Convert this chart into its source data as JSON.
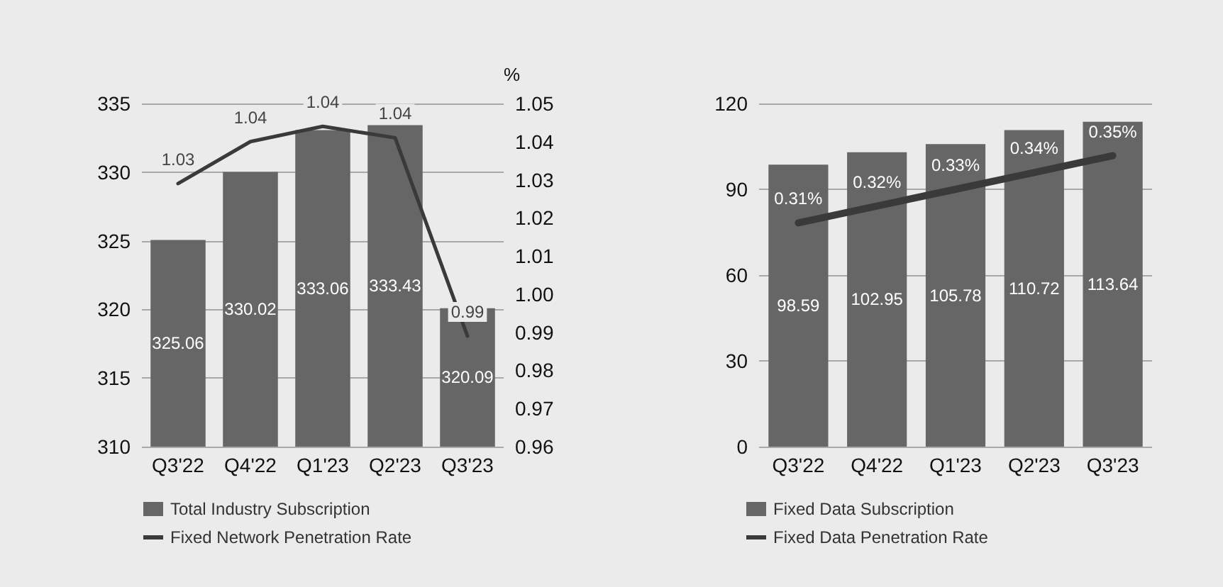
{
  "chart_data": [
    {
      "type": "bar",
      "categories": [
        "Q3'22",
        "Q4'22",
        "Q1'23",
        "Q2'23",
        "Q3'23"
      ],
      "y2label": "%",
      "legend": "bottom left",
      "grid": "y",
      "series": [
        {
          "name": "Total Industry Subscription",
          "color": "#666666",
          "values": [
            325.06,
            330.02,
            333.06,
            333.43,
            320.09
          ],
          "value_labels": [
            "325.06",
            "330.02",
            "333.06",
            "333.43",
            "320.09"
          ]
        },
        {
          "name": "Fixed Network Penetration Rate",
          "type": "line",
          "axis": "y2",
          "color": "#3a3a3a",
          "values": [
            1.029,
            1.04,
            1.044,
            1.041,
            0.989
          ],
          "value_labels": [
            "1.03",
            "1.04",
            "1.04",
            "1.04",
            "0.99"
          ]
        }
      ],
      "ylim": [
        310,
        335
      ],
      "yticks": [
        310,
        315,
        320,
        325,
        330,
        335
      ],
      "y2lim": [
        0.96,
        1.05
      ],
      "y2ticks": [
        "0.96",
        "0.97",
        "0.98",
        "0.99",
        "1.00",
        "1.01",
        "1.02",
        "1.03",
        "1.04",
        "1.05"
      ]
    },
    {
      "type": "bar",
      "categories": [
        "Q3'22",
        "Q4'22",
        "Q1'23",
        "Q2'23",
        "Q3'23"
      ],
      "legend": "bottom left",
      "grid": "y",
      "series": [
        {
          "name": "Fixed Data Subscription",
          "color": "#666666",
          "values": [
            98.59,
            102.95,
            105.78,
            110.72,
            113.64
          ],
          "value_labels": [
            "98.59",
            "102.95",
            "105.78",
            "110.72",
            "113.64"
          ]
        },
        {
          "name": "Fixed Data Penetration Rate",
          "type": "line",
          "axis": "y2",
          "color": "#3a3a3a",
          "values": [
            0.31,
            0.32,
            0.33,
            0.34,
            0.35
          ],
          "value_labels": [
            "0.31%",
            "0.32%",
            "0.33%",
            "0.34%",
            "0.35%"
          ]
        }
      ],
      "ylim": [
        0,
        120
      ],
      "yticks": [
        0,
        30,
        60,
        90,
        120
      ],
      "y2lim": [
        0.177,
        0.381
      ]
    }
  ]
}
